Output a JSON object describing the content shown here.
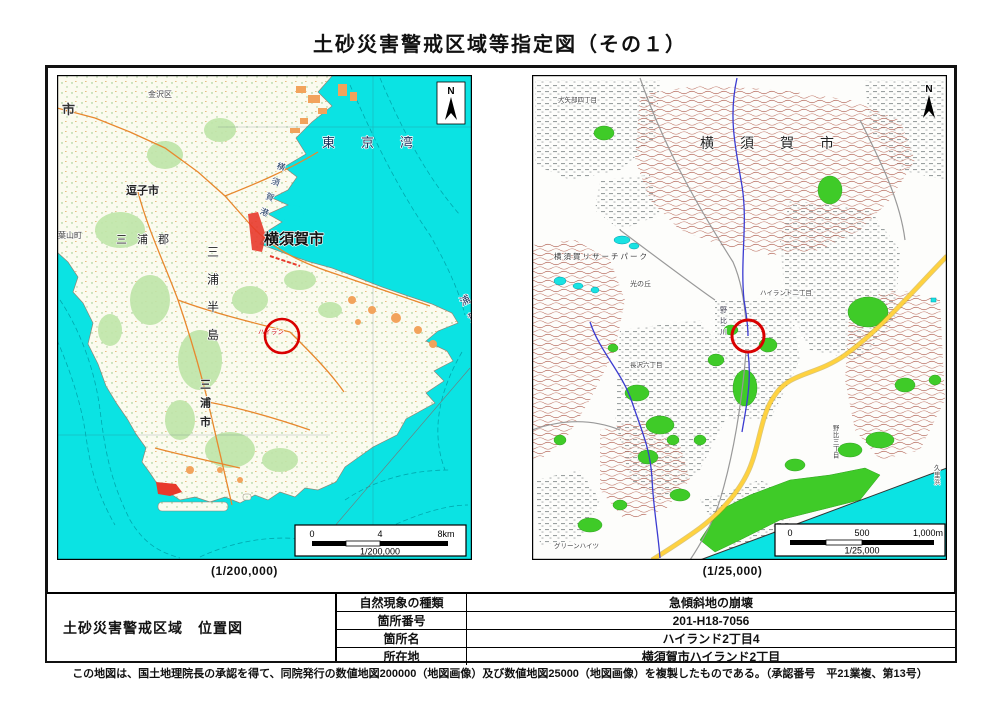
{
  "page": {
    "title": "土砂災害警戒区域等指定図（その１）"
  },
  "colors": {
    "water": "#0BE3E3",
    "forest": "#3FCB28",
    "contour": "#B4685A",
    "road_orange": "#E8882E",
    "road_yellow": "#FFD23F",
    "marker_red": "#D90000"
  },
  "maps": {
    "left": {
      "caption": "(1/200,000)",
      "north": "N",
      "scale": {
        "t0": "0",
        "t1": "4",
        "t2": "8km",
        "ratio": "1/200,000"
      },
      "labels": {
        "shi": "市",
        "kanazawa": "金沢区",
        "zushi": "逗子市",
        "hayama": "葉山町",
        "miura_gun": "三浦郡",
        "yokosuka": "横須賀市",
        "tokyo_bay": "東京湾",
        "port": "横須賀港",
        "peninsula": "三浦半島",
        "miura_city": "三浦市",
        "uraga_channel": "浦賀水道",
        "highland_marker": "ハイラン"
      }
    },
    "right": {
      "caption": "(1/25,000)",
      "north": "N",
      "scale": {
        "t0": "0",
        "t1": "500",
        "t2": "1,000m",
        "ratio": "1/25,000"
      },
      "labels": {
        "yokosuka": "横須賀市",
        "oyabe": "大矢部四丁目",
        "research_park": "横須賀リサーチパーク",
        "hikari_no_oka": "光の丘",
        "nagasawa": "長沢六丁目",
        "green_heights": "グリーンハイツ",
        "highland2": "ハイランド二丁目",
        "nobi_river": "野比川",
        "nobi3": "野比三丁目",
        "kurihama": "久里浜"
      }
    }
  },
  "table": {
    "title": "土砂災害警戒区域　位置図",
    "rows": [
      {
        "label": "自然現象の種類",
        "value": "急傾斜地の崩壊"
      },
      {
        "label": "箇所番号",
        "value": "201-H18-7056"
      },
      {
        "label": "箇所名",
        "value": "ハイランド2丁目4"
      },
      {
        "label": "所在地",
        "value": "横須賀市ハイランド2丁目"
      }
    ]
  },
  "footer": {
    "note": "この地図は、国土地理院長の承認を得て、同院発行の数値地図200000（地図画像）及び数値地図25000（地図画像）を複製したものである。（承認番号　平21業複、第13号）"
  }
}
